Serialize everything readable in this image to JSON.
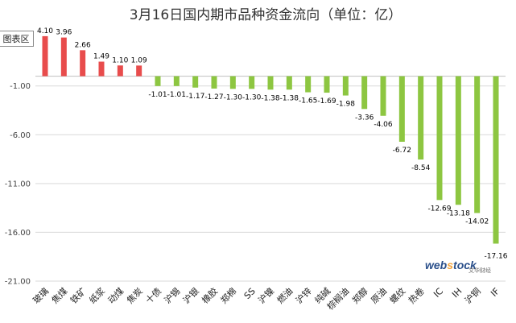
{
  "chart_data": {
    "type": "bar",
    "title": "3月16日国内期市品种资金流向（单位：亿）",
    "categories": [
      "玻璃",
      "焦煤",
      "铁矿",
      "纸浆",
      "动煤",
      "焦炭",
      "十债",
      "沪锡",
      "沪银",
      "橡胶",
      "郑棉",
      "SS",
      "沪镍",
      "燃油",
      "沪锌",
      "纯碱",
      "棕榈油",
      "郑醇",
      "原油",
      "螺纹",
      "热卷",
      "IC",
      "IH",
      "沪铜",
      "IF"
    ],
    "values": [
      4.1,
      3.96,
      2.66,
      1.49,
      1.1,
      1.09,
      -1.01,
      -1.01,
      -1.17,
      -1.27,
      -1.3,
      -1.3,
      -1.38,
      -1.38,
      -1.65,
      -1.69,
      -1.98,
      -3.36,
      -4.06,
      -6.72,
      -8.54,
      -12.69,
      -13.18,
      -14.02,
      -17.16
    ],
    "value_labels": [
      "4.10",
      "3.96",
      "2.66",
      "1.49",
      "1.10",
      "1.09",
      "-1.01",
      "-1.01",
      "-1.17",
      "-1.27",
      "-1.30",
      "-1.30",
      "-1.38",
      "-1.38",
      "-1.65",
      "-1.69",
      "-1.98",
      "-3.36",
      "-4.06",
      "-6.72",
      "-8.54",
      "-12.69",
      "-13.18",
      "-14.02",
      "-17.16"
    ],
    "yticks": [
      -21,
      -16,
      -11,
      -6,
      -1
    ],
    "ytick_labels": [
      "-21.00",
      "-16.00",
      "-11.00",
      "-6.00",
      "-1.00"
    ],
    "ylim": [
      -21,
      5
    ],
    "grid": true,
    "colors": {
      "positive": "#e84c4c",
      "negative": "#8dc641",
      "grid": "#d9d9d9"
    }
  },
  "plot_area_tag": "图表区",
  "watermark": {
    "brand_left": "web",
    "brand_dot": "s",
    "brand_right": "tock",
    "sub": "文华财经"
  }
}
